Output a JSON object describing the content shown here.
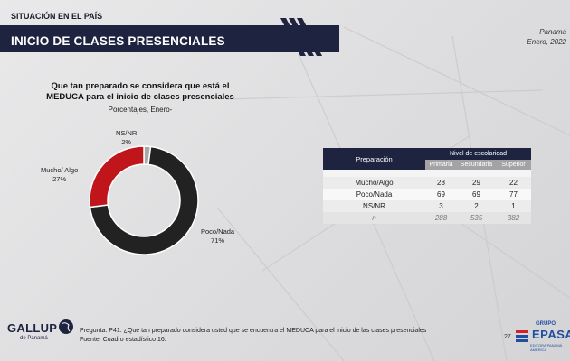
{
  "header": {
    "section": "SITUACIÓN EN EL PAÍS",
    "title": "INICIO DE CLASES PRESENCIALES",
    "location": "Panamá",
    "date": "Enero, 2022"
  },
  "question": {
    "title_line1": "Que tan preparado se considera que está el",
    "title_line2": "MEDUCA para el inicio de clases presenciales",
    "subtitle": "Porcentajes, Enero-"
  },
  "chart_data": [
    {
      "type": "pie",
      "style": "donut",
      "categories": [
        "Poco/Nada",
        "Mucho/ Algo",
        "NS/NR"
      ],
      "values": [
        71,
        27,
        2
      ],
      "value_labels": [
        "71%",
        "27%",
        "2%"
      ],
      "colors": [
        "#222222",
        "#c0151b",
        "#a9a9a9"
      ]
    },
    {
      "type": "table",
      "row_header": "Preparación",
      "group_header": "Nivel de escolaridad",
      "columns": [
        "Primaria",
        "Secundaria",
        "Superior"
      ],
      "rows": [
        {
          "label": "Mucho/Algo",
          "values": [
            "28",
            "29",
            "22"
          ]
        },
        {
          "label": "Poco/Nada",
          "values": [
            "69",
            "69",
            "77"
          ]
        },
        {
          "label": "NS/NR",
          "values": [
            "3",
            "2",
            "1"
          ]
        },
        {
          "label": "n",
          "values": [
            "288",
            "535",
            "382"
          ]
        }
      ]
    }
  ],
  "footer": {
    "question_line": "Pregunta:  P41: ¿Qué tan preparado considera usted que se encuentra el MEDUCA para el inicio de las clases presenciales",
    "source_line": "Fuente:  Cuadro estadístico 16.",
    "page_number": "27",
    "gallup_name": "GALLUP",
    "gallup_sub": "de Panamá",
    "grupo_small": "GRUPO",
    "grupo_big": "EPASA",
    "grupo_tag": "EDITORA PANAMÁ AMÉRICA"
  }
}
